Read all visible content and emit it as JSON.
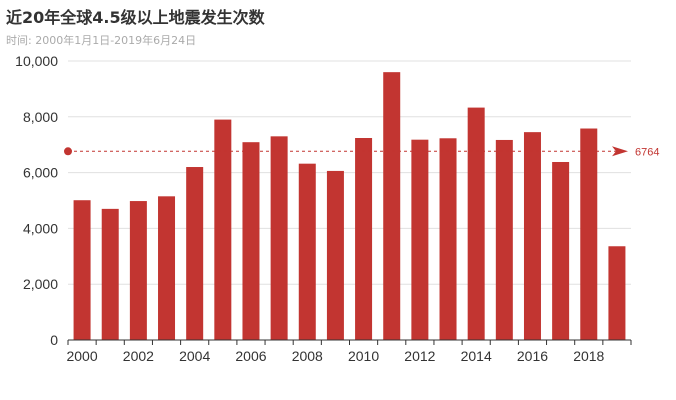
{
  "chart_data": {
    "type": "bar",
    "title": "近20年全球4.5级以上地震发生次数",
    "subtitle": "时间: 2000年1月1日-2019年6月24日",
    "categories": [
      "2000",
      "2001",
      "2002",
      "2003",
      "2004",
      "2005",
      "2006",
      "2007",
      "2008",
      "2009",
      "2010",
      "2011",
      "2012",
      "2013",
      "2014",
      "2015",
      "2016",
      "2017",
      "2018",
      "2019"
    ],
    "values": [
      5010,
      4700,
      4980,
      5150,
      6200,
      7900,
      7090,
      7300,
      6320,
      6060,
      7240,
      9600,
      7180,
      7230,
      8330,
      7170,
      7450,
      6380,
      7580,
      3360
    ],
    "x_tick_labels": [
      "2000",
      "2002",
      "2004",
      "2006",
      "2008",
      "2010",
      "2012",
      "2014",
      "2016",
      "2018"
    ],
    "y_tick_labels": [
      "0",
      "2,000",
      "4,000",
      "6,000",
      "8,000",
      "10,000"
    ],
    "ylim": [
      0,
      10000
    ],
    "average_line": {
      "value": 6764,
      "label": "6764"
    },
    "grid": true,
    "xlabel": "",
    "ylabel": "",
    "colors": {
      "bar": "#c23531",
      "grid": "#e0e0e0",
      "axis": "#333333",
      "text": "#333333"
    }
  }
}
